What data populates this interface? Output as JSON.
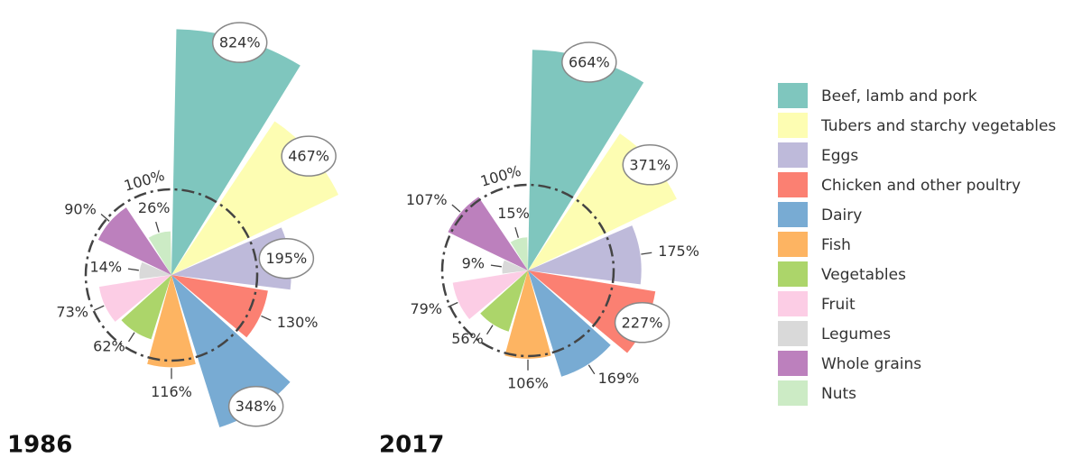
{
  "chart_data": {
    "type": "rose",
    "categories": [
      "Beef, lamb and pork",
      "Tubers and starchy vegetables",
      "Eggs",
      "Chicken and other poultry",
      "Dairy",
      "Fish",
      "Vegetables",
      "Fruit",
      "Legumes",
      "Whole grains",
      "Nuts"
    ],
    "colors": [
      "#7fc6be",
      "#fdfdb2",
      "#bebada",
      "#fb8072",
      "#78abd3",
      "#fdb462",
      "#acd56a",
      "#fccde5",
      "#d9d9d9",
      "#bc80bd",
      "#ccebc5"
    ],
    "reference": {
      "value": 100,
      "label": "100%"
    },
    "series": [
      {
        "name": "1986",
        "values": [
          824,
          467,
          195,
          130,
          348,
          116,
          62,
          73,
          14,
          90,
          26
        ],
        "value_labels": [
          "824%",
          "467%",
          "195%",
          "130%",
          "348%",
          "116%",
          "62%",
          "73%",
          "14%",
          "90%",
          "26%"
        ]
      },
      {
        "name": "2017",
        "values": [
          664,
          371,
          175,
          227,
          169,
          106,
          56,
          79,
          9,
          107,
          15
        ],
        "value_labels": [
          "664%",
          "371%",
          "175%",
          "227%",
          "169%",
          "106%",
          "56%",
          "79%",
          "9%",
          "107%",
          "15%"
        ]
      }
    ]
  }
}
